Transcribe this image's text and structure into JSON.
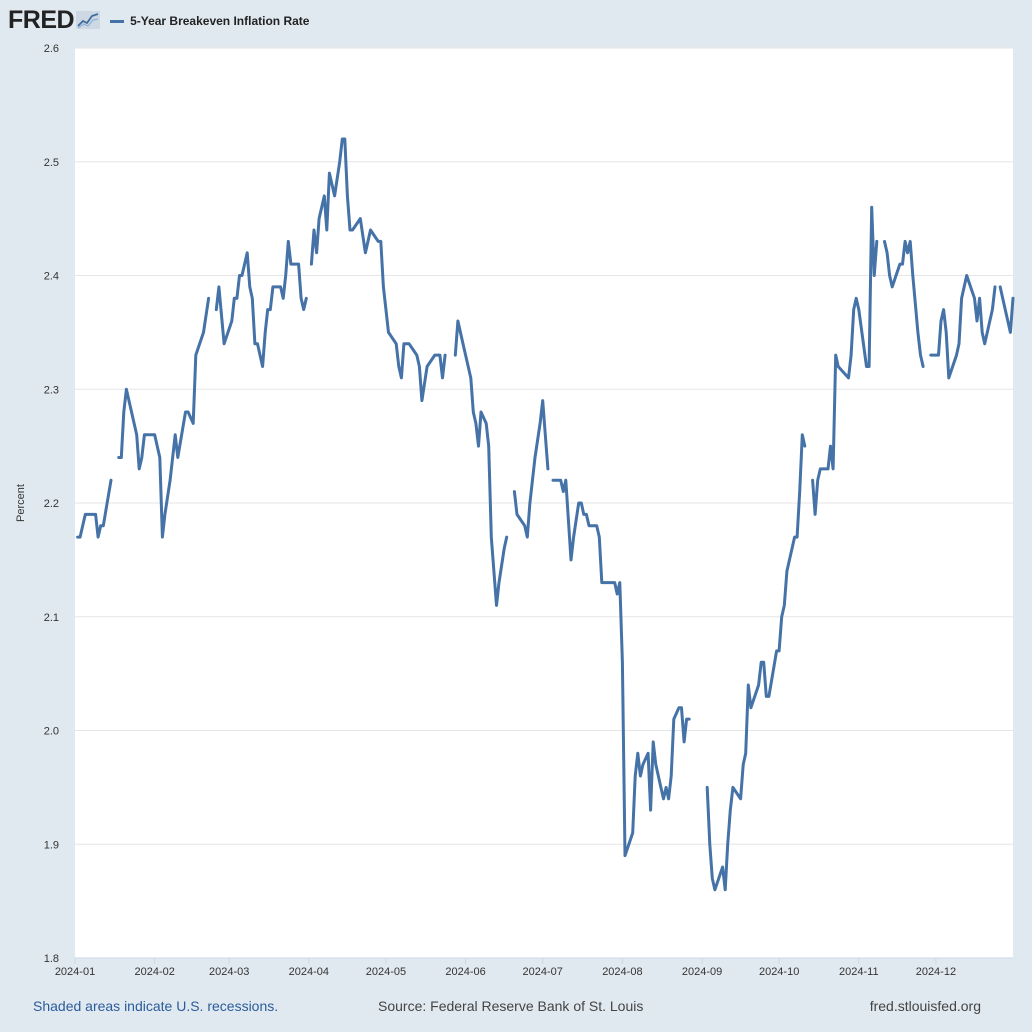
{
  "brand": {
    "name": "FRED",
    "icon": "chart-line-icon"
  },
  "chart_data": {
    "type": "line",
    "title": "",
    "legend": [
      "5-Year Breakeven Inflation Rate"
    ],
    "legend_position": "top-left",
    "ylabel": "Percent",
    "xlabel": "",
    "ylim": [
      1.8,
      2.6
    ],
    "xlim": [
      "2024-01-01",
      "2024-12-31"
    ],
    "y_ticks": [
      "1.8",
      "1.9",
      "2.0",
      "2.1",
      "2.2",
      "2.3",
      "2.4",
      "2.5",
      "2.6"
    ],
    "x_ticks": [
      "2024-01",
      "2024-02",
      "2024-03",
      "2024-04",
      "2024-05",
      "2024-06",
      "2024-07",
      "2024-08",
      "2024-09",
      "2024-10",
      "2024-11",
      "2024-12"
    ],
    "grid": true,
    "series": [
      {
        "name": "5-Year Breakeven Inflation Rate",
        "color": "#4572a7",
        "points": [
          [
            "2024-01-02",
            2.17
          ],
          [
            "2024-01-03",
            2.17
          ],
          [
            "2024-01-04",
            2.18
          ],
          [
            "2024-01-05",
            2.19
          ],
          [
            "2024-01-08",
            2.19
          ],
          [
            "2024-01-09",
            2.19
          ],
          [
            "2024-01-10",
            2.17
          ],
          [
            "2024-01-11",
            2.18
          ],
          [
            "2024-01-12",
            2.18
          ],
          [
            "2024-01-15",
            2.22
          ],
          [
            "2024-01-16",
            null
          ],
          [
            "2024-01-18",
            2.24
          ],
          [
            "2024-01-19",
            2.24
          ],
          [
            "2024-01-20",
            2.28
          ],
          [
            "2024-01-21",
            2.3
          ],
          [
            "2024-01-25",
            2.26
          ],
          [
            "2024-01-26",
            2.23
          ],
          [
            "2024-01-27",
            2.24
          ],
          [
            "2024-01-28",
            2.26
          ],
          [
            "2024-02-01",
            2.26
          ],
          [
            "2024-02-02",
            2.25
          ],
          [
            "2024-02-03",
            2.24
          ],
          [
            "2024-02-04",
            2.17
          ],
          [
            "2024-02-05",
            2.19
          ],
          [
            "2024-02-07",
            2.22
          ],
          [
            "2024-02-09",
            2.26
          ],
          [
            "2024-02-10",
            2.24
          ],
          [
            "2024-02-13",
            2.28
          ],
          [
            "2024-02-14",
            2.28
          ],
          [
            "2024-02-16",
            2.27
          ],
          [
            "2024-02-17",
            2.33
          ],
          [
            "2024-02-20",
            2.35
          ],
          [
            "2024-02-22",
            2.38
          ],
          [
            "2024-02-23",
            null
          ],
          [
            "2024-02-25",
            2.37
          ],
          [
            "2024-02-26",
            2.39
          ],
          [
            "2024-02-28",
            2.34
          ],
          [
            "2024-03-02",
            2.36
          ],
          [
            "2024-03-03",
            2.38
          ],
          [
            "2024-03-04",
            2.38
          ],
          [
            "2024-03-05",
            2.4
          ],
          [
            "2024-03-06",
            2.4
          ],
          [
            "2024-03-08",
            2.42
          ],
          [
            "2024-03-09",
            2.39
          ],
          [
            "2024-03-10",
            2.38
          ],
          [
            "2024-03-11",
            2.34
          ],
          [
            "2024-03-12",
            2.34
          ],
          [
            "2024-03-14",
            2.32
          ],
          [
            "2024-03-15",
            2.35
          ],
          [
            "2024-03-16",
            2.37
          ],
          [
            "2024-03-17",
            2.37
          ],
          [
            "2024-03-18",
            2.39
          ],
          [
            "2024-03-21",
            2.39
          ],
          [
            "2024-03-22",
            2.38
          ],
          [
            "2024-03-23",
            2.4
          ],
          [
            "2024-03-24",
            2.43
          ],
          [
            "2024-03-25",
            2.41
          ],
          [
            "2024-03-28",
            2.41
          ],
          [
            "2024-03-29",
            2.38
          ],
          [
            "2024-03-30",
            2.37
          ],
          [
            "2024-03-31",
            2.38
          ],
          [
            "2024-04-01",
            null
          ],
          [
            "2024-04-02",
            2.41
          ],
          [
            "2024-04-03",
            2.44
          ],
          [
            "2024-04-04",
            2.42
          ],
          [
            "2024-04-05",
            2.45
          ],
          [
            "2024-04-07",
            2.47
          ],
          [
            "2024-04-08",
            2.44
          ],
          [
            "2024-04-09",
            2.49
          ],
          [
            "2024-04-10",
            2.48
          ],
          [
            "2024-04-11",
            2.47
          ],
          [
            "2024-04-13",
            2.5
          ],
          [
            "2024-04-14",
            2.52
          ],
          [
            "2024-04-15",
            2.52
          ],
          [
            "2024-04-16",
            2.47
          ],
          [
            "2024-04-17",
            2.44
          ],
          [
            "2024-04-18",
            2.44
          ],
          [
            "2024-04-21",
            2.45
          ],
          [
            "2024-04-23",
            2.42
          ],
          [
            "2024-04-25",
            2.44
          ],
          [
            "2024-04-28",
            2.43
          ],
          [
            "2024-04-29",
            2.43
          ],
          [
            "2024-04-30",
            2.39
          ],
          [
            "2024-05-02",
            2.35
          ],
          [
            "2024-05-05",
            2.34
          ],
          [
            "2024-05-06",
            2.32
          ],
          [
            "2024-05-07",
            2.31
          ],
          [
            "2024-05-08",
            2.34
          ],
          [
            "2024-05-09",
            2.34
          ],
          [
            "2024-05-10",
            2.34
          ],
          [
            "2024-05-13",
            2.33
          ],
          [
            "2024-05-14",
            2.32
          ],
          [
            "2024-05-15",
            2.29
          ],
          [
            "2024-05-17",
            2.32
          ],
          [
            "2024-05-20",
            2.33
          ],
          [
            "2024-05-22",
            2.33
          ],
          [
            "2024-05-23",
            2.31
          ],
          [
            "2024-05-24",
            2.33
          ],
          [
            "2024-05-25",
            null
          ],
          [
            "2024-05-28",
            2.33
          ],
          [
            "2024-05-29",
            2.36
          ],
          [
            "2024-05-31",
            2.34
          ],
          [
            "2024-06-03",
            2.31
          ],
          [
            "2024-06-04",
            2.28
          ],
          [
            "2024-06-05",
            2.27
          ],
          [
            "2024-06-06",
            2.25
          ],
          [
            "2024-06-07",
            2.28
          ],
          [
            "2024-06-09",
            2.27
          ],
          [
            "2024-06-10",
            2.25
          ],
          [
            "2024-06-11",
            2.17
          ],
          [
            "2024-06-13",
            2.11
          ],
          [
            "2024-06-14",
            2.13
          ],
          [
            "2024-06-16",
            2.16
          ],
          [
            "2024-06-17",
            2.17
          ],
          [
            "2024-06-18",
            null
          ],
          [
            "2024-06-20",
            2.21
          ],
          [
            "2024-06-21",
            2.19
          ],
          [
            "2024-06-24",
            2.18
          ],
          [
            "2024-06-25",
            2.17
          ],
          [
            "2024-06-26",
            2.2
          ],
          [
            "2024-06-28",
            2.24
          ],
          [
            "2024-06-30",
            2.27
          ],
          [
            "2024-07-01",
            2.29
          ],
          [
            "2024-07-02",
            2.26
          ],
          [
            "2024-07-03",
            2.23
          ],
          [
            "2024-07-04",
            null
          ],
          [
            "2024-07-05",
            2.22
          ],
          [
            "2024-07-06",
            2.22
          ],
          [
            "2024-07-08",
            2.22
          ],
          [
            "2024-07-09",
            2.21
          ],
          [
            "2024-07-10",
            2.22
          ],
          [
            "2024-07-12",
            2.15
          ],
          [
            "2024-07-13",
            2.17
          ],
          [
            "2024-07-15",
            2.2
          ],
          [
            "2024-07-16",
            2.2
          ],
          [
            "2024-07-17",
            2.19
          ],
          [
            "2024-07-18",
            2.19
          ],
          [
            "2024-07-19",
            2.18
          ],
          [
            "2024-07-22",
            2.18
          ],
          [
            "2024-07-23",
            2.17
          ],
          [
            "2024-07-24",
            2.13
          ],
          [
            "2024-07-29",
            2.13
          ],
          [
            "2024-07-30",
            2.12
          ],
          [
            "2024-07-31",
            2.13
          ],
          [
            "2024-08-01",
            2.06
          ],
          [
            "2024-08-02",
            1.89
          ],
          [
            "2024-08-05",
            1.91
          ],
          [
            "2024-08-06",
            1.96
          ],
          [
            "2024-08-07",
            1.98
          ],
          [
            "2024-08-08",
            1.96
          ],
          [
            "2024-08-09",
            1.97
          ],
          [
            "2024-08-11",
            1.98
          ],
          [
            "2024-08-12",
            1.93
          ],
          [
            "2024-08-13",
            1.99
          ],
          [
            "2024-08-14",
            1.97
          ],
          [
            "2024-08-16",
            1.95
          ],
          [
            "2024-08-17",
            1.94
          ],
          [
            "2024-08-18",
            1.95
          ],
          [
            "2024-08-19",
            1.94
          ],
          [
            "2024-08-20",
            1.96
          ],
          [
            "2024-08-21",
            2.01
          ],
          [
            "2024-08-23",
            2.02
          ],
          [
            "2024-08-24",
            2.02
          ],
          [
            "2024-08-25",
            1.99
          ],
          [
            "2024-08-26",
            2.01
          ],
          [
            "2024-08-27",
            2.01
          ],
          [
            "2024-08-28",
            null
          ],
          [
            "2024-09-03",
            1.95
          ],
          [
            "2024-09-04",
            1.9
          ],
          [
            "2024-09-05",
            1.87
          ],
          [
            "2024-09-06",
            1.86
          ],
          [
            "2024-09-09",
            1.88
          ],
          [
            "2024-09-10",
            1.86
          ],
          [
            "2024-09-11",
            1.9
          ],
          [
            "2024-09-12",
            1.93
          ],
          [
            "2024-09-13",
            1.95
          ],
          [
            "2024-09-16",
            1.94
          ],
          [
            "2024-09-17",
            1.97
          ],
          [
            "2024-09-18",
            1.98
          ],
          [
            "2024-09-19",
            2.04
          ],
          [
            "2024-09-20",
            2.02
          ],
          [
            "2024-09-23",
            2.04
          ],
          [
            "2024-09-24",
            2.06
          ],
          [
            "2024-09-25",
            2.06
          ],
          [
            "2024-09-26",
            2.03
          ],
          [
            "2024-09-27",
            2.03
          ],
          [
            "2024-09-30",
            2.07
          ],
          [
            "2024-10-01",
            2.07
          ],
          [
            "2024-10-02",
            2.1
          ],
          [
            "2024-10-03",
            2.11
          ],
          [
            "2024-10-04",
            2.14
          ],
          [
            "2024-10-07",
            2.17
          ],
          [
            "2024-10-08",
            2.17
          ],
          [
            "2024-10-09",
            2.21
          ],
          [
            "2024-10-10",
            2.26
          ],
          [
            "2024-10-11",
            2.25
          ],
          [
            "2024-10-12",
            null
          ],
          [
            "2024-10-14",
            2.22
          ],
          [
            "2024-10-15",
            2.19
          ],
          [
            "2024-10-16",
            2.22
          ],
          [
            "2024-10-17",
            2.23
          ],
          [
            "2024-10-20",
            2.23
          ],
          [
            "2024-10-21",
            2.25
          ],
          [
            "2024-10-22",
            2.23
          ],
          [
            "2024-10-23",
            2.33
          ],
          [
            "2024-10-24",
            2.32
          ],
          [
            "2024-10-28",
            2.31
          ],
          [
            "2024-10-29",
            2.33
          ],
          [
            "2024-10-30",
            2.37
          ],
          [
            "2024-10-31",
            2.38
          ],
          [
            "2024-11-01",
            2.37
          ],
          [
            "2024-11-04",
            2.32
          ],
          [
            "2024-11-05",
            2.32
          ],
          [
            "2024-11-06",
            2.46
          ],
          [
            "2024-11-07",
            2.4
          ],
          [
            "2024-11-08",
            2.43
          ],
          [
            "2024-11-09",
            null
          ],
          [
            "2024-11-11",
            2.43
          ],
          [
            "2024-11-12",
            2.42
          ],
          [
            "2024-11-13",
            2.4
          ],
          [
            "2024-11-14",
            2.39
          ],
          [
            "2024-11-17",
            2.41
          ],
          [
            "2024-11-18",
            2.41
          ],
          [
            "2024-11-19",
            2.43
          ],
          [
            "2024-11-20",
            2.42
          ],
          [
            "2024-11-21",
            2.43
          ],
          [
            "2024-11-22",
            2.4
          ],
          [
            "2024-11-24",
            2.35
          ],
          [
            "2024-11-25",
            2.33
          ],
          [
            "2024-11-26",
            2.32
          ],
          [
            "2024-11-27",
            null
          ],
          [
            "2024-11-29",
            2.33
          ],
          [
            "2024-12-02",
            2.33
          ],
          [
            "2024-12-03",
            2.36
          ],
          [
            "2024-12-04",
            2.37
          ],
          [
            "2024-12-05",
            2.35
          ],
          [
            "2024-12-06",
            2.31
          ],
          [
            "2024-12-09",
            2.33
          ],
          [
            "2024-12-10",
            2.34
          ],
          [
            "2024-12-11",
            2.38
          ],
          [
            "2024-12-13",
            2.4
          ],
          [
            "2024-12-16",
            2.38
          ],
          [
            "2024-12-17",
            2.36
          ],
          [
            "2024-12-18",
            2.38
          ],
          [
            "2024-12-19",
            2.35
          ],
          [
            "2024-12-20",
            2.34
          ],
          [
            "2024-12-23",
            2.37
          ],
          [
            "2024-12-24",
            2.39
          ],
          [
            "2024-12-25",
            null
          ],
          [
            "2024-12-26",
            2.39
          ],
          [
            "2024-12-27",
            2.38
          ],
          [
            "2024-12-30",
            2.35
          ],
          [
            "2024-12-31",
            2.38
          ]
        ]
      }
    ]
  },
  "footer": {
    "recessions_note": "Shaded areas indicate U.S. recessions.",
    "source": "Source: Federal Reserve Bank of St. Louis",
    "website": "fred.stlouisfed.org"
  }
}
